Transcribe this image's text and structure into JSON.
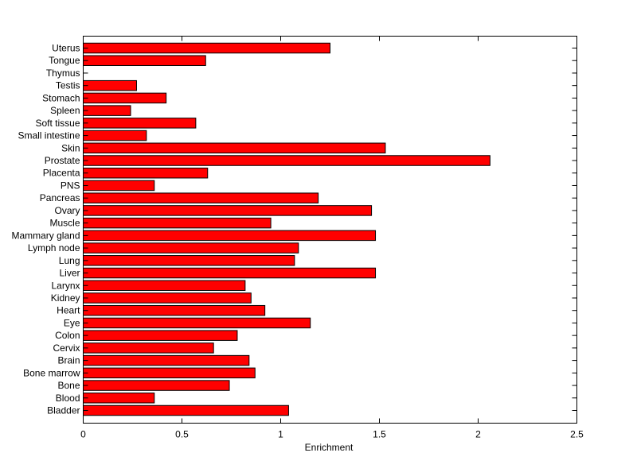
{
  "chart_data": {
    "type": "bar",
    "orientation": "horizontal",
    "title": "",
    "xlabel": "Enrichment",
    "ylabel": "",
    "xlim": [
      0,
      2.5
    ],
    "xticks": [
      0,
      0.5,
      1,
      1.5,
      2,
      2.5
    ],
    "xtick_labels": [
      "0",
      "0.5",
      "1",
      "1.5",
      "2",
      "2.5"
    ],
    "grid": false,
    "legend": "none",
    "bar_color": "#ff0000",
    "categories": [
      "Bladder",
      "Blood",
      "Bone",
      "Bone marrow",
      "Brain",
      "Cervix",
      "Colon",
      "Eye",
      "Heart",
      "Kidney",
      "Larynx",
      "Liver",
      "Lung",
      "Lymph node",
      "Mammary gland",
      "Muscle",
      "Ovary",
      "Pancreas",
      "PNS",
      "Placenta",
      "Prostate",
      "Skin",
      "Small intestine",
      "Soft tissue",
      "Spleen",
      "Stomach",
      "Testis",
      "Thymus",
      "Tongue",
      "Uterus"
    ],
    "values": [
      1.04,
      0.36,
      0.74,
      0.87,
      0.84,
      0.66,
      0.78,
      1.15,
      0.92,
      0.85,
      0.82,
      1.48,
      1.07,
      1.09,
      1.48,
      0.95,
      1.46,
      1.19,
      0.36,
      0.63,
      2.06,
      1.53,
      0.32,
      0.57,
      0.24,
      0.42,
      0.27,
      0.0,
      0.62,
      1.25
    ]
  }
}
